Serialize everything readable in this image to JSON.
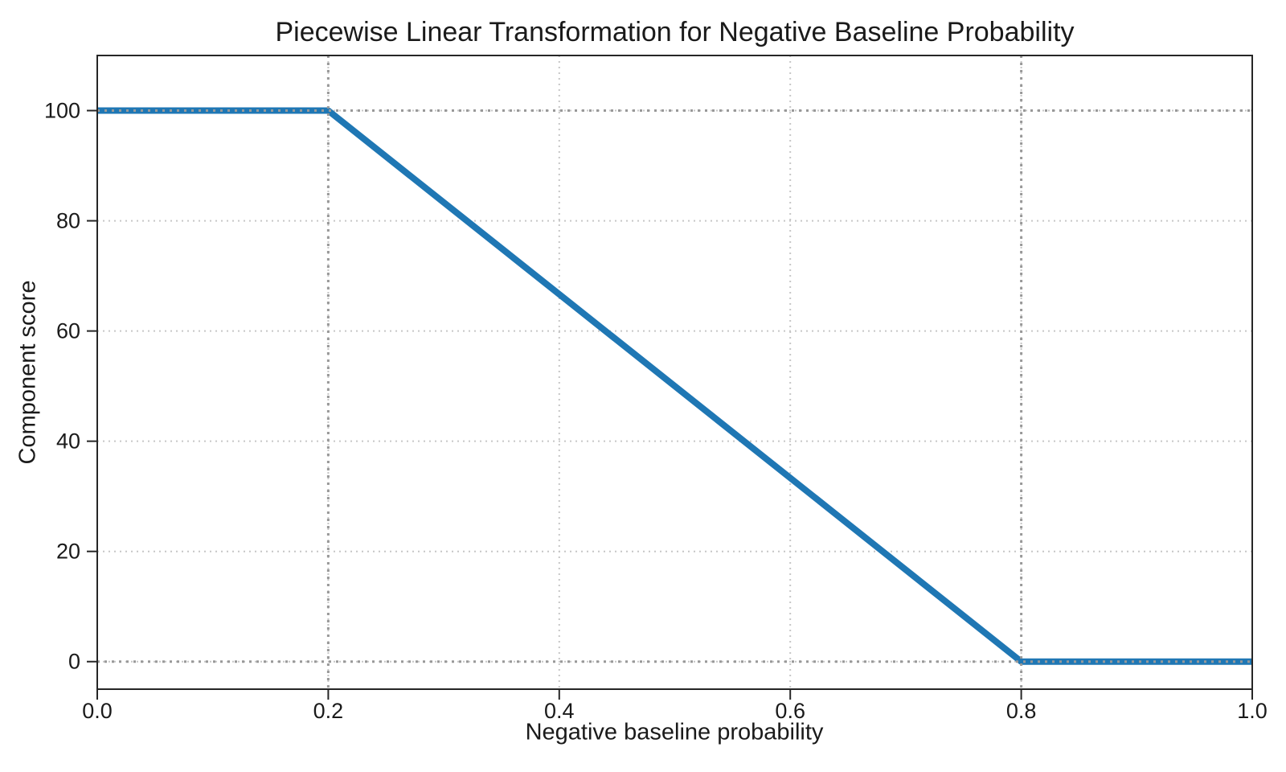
{
  "page": {
    "background": "#ffffff",
    "text_color": "#1a1a1a",
    "axis_color": "#262626"
  },
  "chart_data": {
    "type": "line",
    "title": "Piecewise Linear Transformation for Negative Baseline Probability",
    "xlabel": "Negative baseline probability",
    "ylabel": "Component score",
    "xlim": [
      0,
      1
    ],
    "ylim": [
      -5,
      110
    ],
    "xticks": [
      0,
      0.2,
      0.4,
      0.6,
      0.8,
      1
    ],
    "xtick_labels": [
      "0.0",
      "0.2",
      "0.4",
      "0.6",
      "0.8",
      "1.0"
    ],
    "yticks": [
      0,
      20,
      40,
      60,
      80,
      100
    ],
    "ytick_labels": [
      "0",
      "20",
      "40",
      "60",
      "80",
      "100"
    ],
    "grid": {
      "on": true,
      "linestyle": "dotted",
      "color": "#c6c6c6"
    },
    "reference_lines": {
      "vertical_x": [
        0.2,
        0.8
      ],
      "horizontal_y": [
        100,
        0
      ],
      "color": "#999999",
      "linestyle": "dotted"
    },
    "legend": null,
    "series": [
      {
        "name": "component-score",
        "color": "#1f77b4",
        "linewidth": 8,
        "points": [
          {
            "x": 0.0,
            "y": 100
          },
          {
            "x": 0.2,
            "y": 100
          },
          {
            "x": 0.8,
            "y": 0
          },
          {
            "x": 1.0,
            "y": 0
          }
        ]
      }
    ]
  }
}
